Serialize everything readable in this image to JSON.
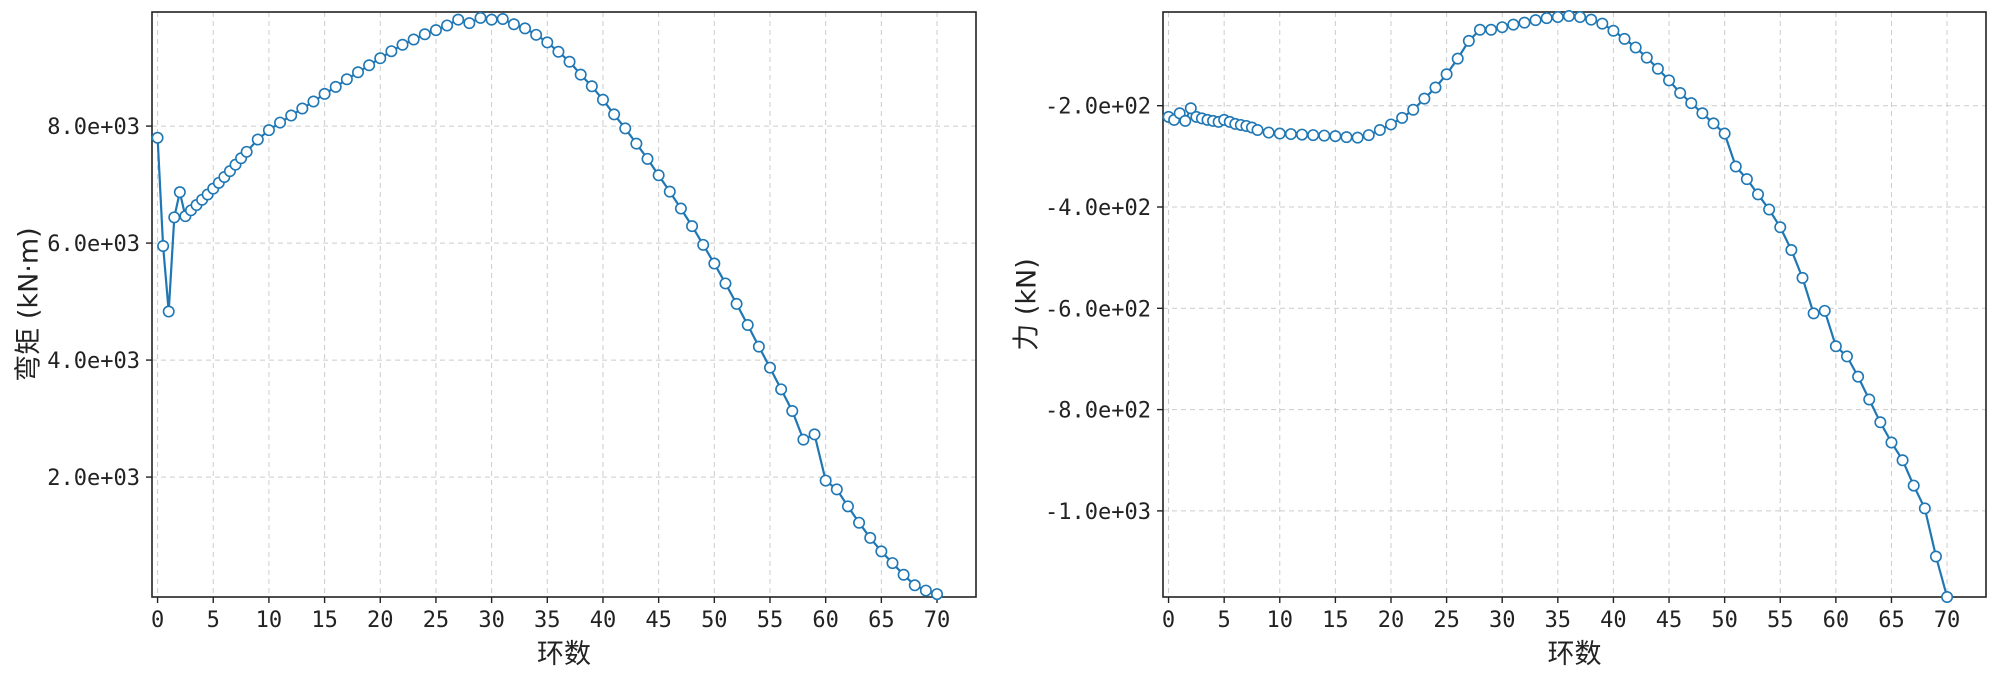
{
  "colors": {
    "series": "#1f77b4",
    "grid": "#cccccc",
    "axis": "#222222"
  },
  "chart_data": [
    {
      "type": "line",
      "xlabel": "环数",
      "ylabel": "弯矩 (kN·m)",
      "xlim": [
        -0.5,
        73.5
      ],
      "ylim": [
        -50,
        9950
      ],
      "grid": true,
      "xticks": [
        0,
        5,
        10,
        15,
        20,
        25,
        30,
        35,
        40,
        45,
        50,
        55,
        60,
        65,
        70
      ],
      "xtick_labels": [
        "0",
        "5",
        "10",
        "15",
        "20",
        "25",
        "30",
        "35",
        "40",
        "45",
        "50",
        "55",
        "60",
        "65",
        "70"
      ],
      "yticks": [
        2000,
        4000,
        6000,
        8000
      ],
      "ytick_labels": [
        "2.0e+03",
        "4.0e+03",
        "6.0e+03",
        "8.0e+03"
      ],
      "series": [
        {
          "marker": "o",
          "x": [
            0,
            0.5,
            1,
            1.5,
            2,
            2.5,
            3,
            3.5,
            4,
            4.5,
            5,
            5.5,
            6,
            6.5,
            7,
            7.5,
            8,
            9,
            10,
            11,
            12,
            13,
            14,
            15,
            16,
            17,
            18,
            19,
            20,
            21,
            22,
            23,
            24,
            25,
            26,
            27,
            28,
            29,
            30,
            31,
            32,
            33,
            34,
            35,
            36,
            37,
            38,
            39,
            40,
            41,
            42,
            43,
            44,
            45,
            46,
            47,
            48,
            49,
            50,
            51,
            52,
            53,
            54,
            55,
            56,
            57,
            58,
            59,
            60,
            61,
            62,
            63,
            64,
            65,
            66,
            67,
            68,
            69,
            70
          ],
          "y": [
            7800,
            5950,
            4830,
            6440,
            6870,
            6460,
            6560,
            6650,
            6740,
            6830,
            6930,
            7030,
            7130,
            7230,
            7340,
            7450,
            7560,
            7770,
            7930,
            8060,
            8180,
            8300,
            8420,
            8550,
            8670,
            8800,
            8920,
            9040,
            9160,
            9280,
            9390,
            9480,
            9570,
            9640,
            9720,
            9820,
            9760,
            9850,
            9820,
            9830,
            9740,
            9670,
            9560,
            9430,
            9270,
            9100,
            8880,
            8680,
            8450,
            8200,
            7960,
            7700,
            7440,
            7160,
            6880,
            6590,
            6290,
            5970,
            5650,
            5310,
            4960,
            4600,
            4230,
            3870,
            3500,
            3130,
            2640,
            2730,
            1940,
            1790,
            1500,
            1220,
            960,
            730,
            530,
            330,
            150,
            60,
            0
          ]
        }
      ]
    },
    {
      "type": "line",
      "xlabel": "环数",
      "ylabel": "力 (kN)",
      "xlim": [
        -0.5,
        73.5
      ],
      "ylim": [
        -1170,
        -15
      ],
      "grid": true,
      "xticks": [
        0,
        5,
        10,
        15,
        20,
        25,
        30,
        35,
        40,
        45,
        50,
        55,
        60,
        65,
        70
      ],
      "xtick_labels": [
        "0",
        "5",
        "10",
        "15",
        "20",
        "25",
        "30",
        "35",
        "40",
        "45",
        "50",
        "55",
        "60",
        "65",
        "70"
      ],
      "yticks": [
        -1000,
        -800,
        -600,
        -400,
        -200
      ],
      "ytick_labels": [
        "-1.0e+03",
        "-8.0e+02",
        "-6.0e+02",
        "-4.0e+02",
        "-2.0e+02"
      ],
      "series": [
        {
          "marker": "o",
          "x": [
            0,
            0.5,
            1,
            1.5,
            2,
            2.5,
            3,
            3.5,
            4,
            4.5,
            5,
            5.5,
            6,
            6.5,
            7,
            7.5,
            8,
            9,
            10,
            11,
            12,
            13,
            14,
            15,
            16,
            17,
            18,
            19,
            20,
            21,
            22,
            23,
            24,
            25,
            26,
            27,
            28,
            29,
            30,
            31,
            32,
            33,
            34,
            35,
            36,
            37,
            38,
            39,
            40,
            41,
            42,
            43,
            44,
            45,
            46,
            47,
            48,
            49,
            50,
            51,
            52,
            53,
            54,
            55,
            56,
            57,
            58,
            59,
            60,
            61,
            62,
            63,
            64,
            65,
            66,
            67,
            68,
            69,
            70
          ],
          "y": [
            -222,
            -228,
            -215,
            -230,
            -205,
            -222,
            -225,
            -228,
            -230,
            -232,
            -228,
            -232,
            -236,
            -238,
            -240,
            -243,
            -248,
            -253,
            -255,
            -256,
            -257,
            -258,
            -259,
            -260,
            -262,
            -263,
            -258,
            -248,
            -237,
            -224,
            -208,
            -186,
            -164,
            -138,
            -107,
            -72,
            -50,
            -50,
            -45,
            -40,
            -36,
            -31,
            -27,
            -25,
            -23,
            -25,
            -30,
            -38,
            -52,
            -68,
            -85,
            -105,
            -127,
            -150,
            -175,
            -195,
            -215,
            -235,
            -255,
            -320,
            -345,
            -375,
            -405,
            -440,
            -485,
            -540,
            -610,
            -605,
            -675,
            -695,
            -735,
            -780,
            -825,
            -865,
            -900,
            -950,
            -995,
            -1090,
            -1170
          ]
        }
      ]
    }
  ]
}
